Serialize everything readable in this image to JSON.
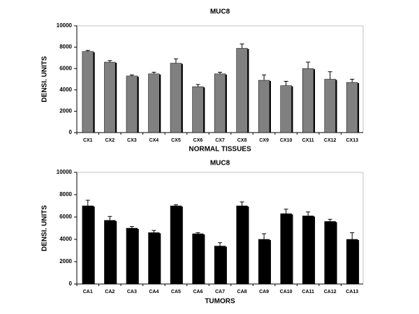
{
  "chart_data": [
    {
      "type": "bar",
      "title": "MUC8",
      "xlabel": "NORMAL TISSUES",
      "ylabel": "DENSI. UNITS",
      "categories": [
        "CX1",
        "CX2",
        "CX3",
        "CX4",
        "CX5",
        "CX6",
        "CX7",
        "CX8",
        "CX9",
        "CX10",
        "CX11",
        "CX12",
        "CX13"
      ],
      "values": [
        7600,
        6600,
        5300,
        5500,
        6500,
        4300,
        5500,
        7900,
        4900,
        4400,
        6000,
        5000,
        4700
      ],
      "errors": [
        100,
        150,
        100,
        150,
        400,
        200,
        150,
        400,
        500,
        400,
        600,
        700,
        300
      ],
      "color": "#808080",
      "ylim": [
        0,
        10000
      ],
      "yticks": [
        0,
        2000,
        4000,
        6000,
        8000,
        10000
      ]
    },
    {
      "type": "bar",
      "title": "MUC8",
      "xlabel": "TUMORS",
      "ylabel": "DENSI. UNITS",
      "categories": [
        "CA1",
        "CA2",
        "CA3",
        "CA4",
        "CA5",
        "CA6",
        "CA7",
        "CA8",
        "CA9",
        "CA10",
        "CA11",
        "CA12",
        "CA13"
      ],
      "values": [
        7000,
        5700,
        5000,
        4600,
        7000,
        4500,
        3400,
        7000,
        4000,
        6300,
        6100,
        5600,
        4000
      ],
      "errors": [
        500,
        350,
        150,
        200,
        100,
        100,
        300,
        350,
        500,
        400,
        350,
        200,
        600
      ],
      "color": "#000000",
      "ylim": [
        0,
        10000
      ],
      "yticks": [
        0,
        2000,
        4000,
        6000,
        8000,
        10000
      ]
    }
  ]
}
